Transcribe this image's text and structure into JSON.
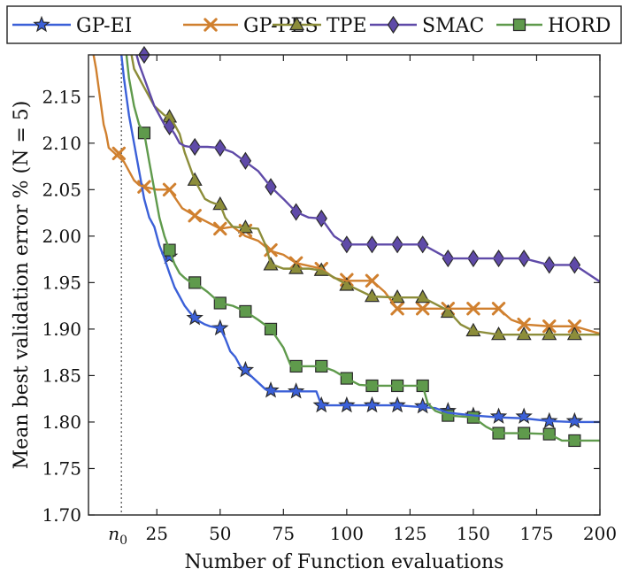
{
  "chart_data": {
    "type": "line",
    "xlabel": "Number of Function evaluations",
    "ylabel": "Mean best validation error % (N = 5)",
    "xlim": [
      -2,
      200
    ],
    "ylim": [
      1.7,
      2.195
    ],
    "xticks": [
      25,
      50,
      75,
      100,
      125,
      150,
      175,
      200
    ],
    "yticks": [
      1.7,
      1.75,
      1.8,
      1.85,
      1.9,
      1.95,
      2.0,
      2.05,
      2.1,
      2.15
    ],
    "annotation": {
      "label": "n0",
      "x": 11
    },
    "legend_position": "top",
    "grid": false,
    "series": [
      {
        "name": "GP-EI",
        "color": "#3b60d8",
        "marker": "star",
        "x": [
          11,
          12,
          14,
          16,
          18,
          20,
          22,
          24,
          26,
          28,
          30,
          32,
          34,
          36,
          38,
          40,
          42,
          44,
          46,
          48,
          50,
          52,
          54,
          56,
          58,
          60,
          62,
          64,
          66,
          68,
          70,
          75,
          80,
          85,
          88,
          90,
          100,
          120,
          135,
          140,
          150,
          160,
          170,
          180,
          190,
          200
        ],
        "y": [
          2.195,
          2.17,
          2.13,
          2.1,
          2.07,
          2.04,
          2.02,
          2.01,
          1.99,
          1.976,
          1.96,
          1.945,
          1.935,
          1.925,
          1.918,
          1.912,
          1.908,
          1.905,
          1.903,
          1.902,
          1.901,
          1.89,
          1.876,
          1.87,
          1.86,
          1.855,
          1.85,
          1.845,
          1.84,
          1.835,
          1.833,
          1.833,
          1.833,
          1.833,
          1.833,
          1.818,
          1.818,
          1.818,
          1.815,
          1.81,
          1.807,
          1.805,
          1.804,
          1.801,
          1.8,
          1.8
        ],
        "markers_x": [
          30,
          40,
          50,
          60,
          70,
          80,
          90,
          100,
          110,
          120,
          130,
          140,
          150,
          160,
          170,
          180,
          190
        ],
        "markers_y": [
          1.978,
          1.912,
          1.901,
          1.856,
          1.834,
          1.833,
          1.818,
          1.818,
          1.818,
          1.818,
          1.817,
          1.812,
          1.807,
          1.806,
          1.806,
          1.801,
          1.801
        ]
      },
      {
        "name": "GP-PES",
        "color": "#d0802f",
        "marker": "x",
        "x": [
          0,
          1,
          2,
          3,
          4,
          5,
          6,
          8,
          10,
          12,
          14,
          16,
          18,
          20,
          25,
          30,
          35,
          40,
          45,
          50,
          55,
          60,
          65,
          70,
          75,
          80,
          85,
          90,
          95,
          100,
          110,
          115,
          120,
          130,
          140,
          150,
          160,
          165,
          170,
          180,
          190,
          200
        ],
        "y": [
          2.195,
          2.18,
          2.16,
          2.14,
          2.12,
          2.11,
          2.095,
          2.09,
          2.085,
          2.08,
          2.07,
          2.06,
          2.055,
          2.053,
          2.05,
          2.05,
          2.03,
          2.022,
          2.015,
          2.008,
          2.01,
          2.0,
          1.995,
          1.984,
          1.98,
          1.971,
          1.968,
          1.965,
          1.955,
          1.952,
          1.952,
          1.94,
          1.922,
          1.922,
          1.922,
          1.922,
          1.922,
          1.91,
          1.905,
          1.903,
          1.903,
          1.895
        ],
        "markers_x": [
          10,
          20,
          30,
          40,
          50,
          60,
          70,
          80,
          90,
          100,
          110,
          120,
          130,
          140,
          150,
          160,
          170,
          180,
          190
        ],
        "markers_y": [
          2.089,
          2.053,
          2.05,
          2.022,
          2.008,
          2.006,
          1.985,
          1.971,
          1.965,
          1.953,
          1.952,
          1.922,
          1.922,
          1.922,
          1.922,
          1.922,
          1.905,
          1.903,
          1.903
        ]
      },
      {
        "name": "TPE",
        "color": "#8c8d3a",
        "marker": "triangle",
        "x": [
          15,
          16,
          18,
          20,
          22,
          24,
          26,
          28,
          30,
          32,
          34,
          36,
          38,
          40,
          42,
          44,
          46,
          48,
          50,
          52,
          55,
          60,
          65,
          68,
          70,
          75,
          80,
          85,
          90,
          100,
          110,
          120,
          130,
          140,
          145,
          150,
          160,
          170,
          180,
          190,
          200
        ],
        "y": [
          2.195,
          2.18,
          2.17,
          2.16,
          2.15,
          2.14,
          2.135,
          2.13,
          2.128,
          2.12,
          2.11,
          2.09,
          2.075,
          2.06,
          2.05,
          2.04,
          2.037,
          2.035,
          2.034,
          2.02,
          2.01,
          2.009,
          2.008,
          1.99,
          1.97,
          1.965,
          1.965,
          1.965,
          1.963,
          1.948,
          1.935,
          1.934,
          1.934,
          1.92,
          1.905,
          1.898,
          1.894,
          1.894,
          1.894,
          1.894,
          1.894
        ],
        "markers_x": [
          30,
          40,
          50,
          60,
          70,
          80,
          90,
          100,
          110,
          120,
          130,
          140,
          150,
          160,
          170,
          180,
          190
        ],
        "markers_y": [
          2.128,
          2.06,
          2.034,
          2.009,
          1.969,
          1.965,
          1.963,
          1.947,
          1.935,
          1.934,
          1.934,
          1.918,
          1.898,
          1.894,
          1.894,
          1.894,
          1.894
        ]
      },
      {
        "name": "SMAC",
        "color": "#5f4aa8",
        "marker": "diamond",
        "x": [
          17,
          18,
          20,
          22,
          24,
          26,
          28,
          30,
          32,
          34,
          36,
          38,
          40,
          45,
          50,
          55,
          60,
          65,
          70,
          75,
          80,
          85,
          90,
          95,
          100,
          110,
          120,
          130,
          140,
          150,
          160,
          170,
          180,
          190,
          200
        ],
        "y": [
          2.195,
          2.185,
          2.17,
          2.155,
          2.14,
          2.13,
          2.12,
          2.118,
          2.11,
          2.1,
          2.097,
          2.096,
          2.096,
          2.096,
          2.095,
          2.09,
          2.08,
          2.07,
          2.053,
          2.04,
          2.026,
          2.02,
          2.019,
          2.0,
          1.991,
          1.991,
          1.991,
          1.991,
          1.976,
          1.976,
          1.976,
          1.976,
          1.969,
          1.969,
          1.951
        ],
        "markers_x": [
          20,
          30,
          40,
          50,
          60,
          70,
          80,
          90,
          100,
          110,
          120,
          130,
          140,
          150,
          160,
          170,
          180,
          190
        ],
        "markers_y": [
          2.195,
          2.118,
          2.096,
          2.095,
          2.081,
          2.053,
          2.026,
          2.019,
          1.991,
          1.991,
          1.991,
          1.991,
          1.976,
          1.976,
          1.976,
          1.976,
          1.969,
          1.969
        ]
      },
      {
        "name": "HORD",
        "color": "#5f9a4c",
        "marker": "square",
        "x": [
          13,
          14,
          16,
          18,
          20,
          22,
          24,
          26,
          28,
          30,
          32,
          34,
          36,
          38,
          40,
          45,
          50,
          55,
          60,
          65,
          70,
          75,
          78,
          80,
          90,
          95,
          100,
          105,
          110,
          120,
          130,
          132,
          135,
          140,
          150,
          155,
          160,
          170,
          180,
          185,
          190,
          200
        ],
        "y": [
          2.195,
          2.17,
          2.14,
          2.12,
          2.111,
          2.08,
          2.05,
          2.02,
          2.0,
          1.985,
          1.97,
          1.96,
          1.955,
          1.951,
          1.95,
          1.94,
          1.928,
          1.925,
          1.919,
          1.91,
          1.9,
          1.88,
          1.86,
          1.86,
          1.86,
          1.855,
          1.847,
          1.84,
          1.839,
          1.839,
          1.839,
          1.82,
          1.812,
          1.807,
          1.805,
          1.795,
          1.788,
          1.788,
          1.787,
          1.78,
          1.78,
          1.78
        ],
        "markers_x": [
          20,
          30,
          40,
          50,
          60,
          70,
          80,
          90,
          100,
          110,
          120,
          130,
          140,
          150,
          160,
          170,
          180,
          190
        ],
        "markers_y": [
          2.111,
          1.985,
          1.95,
          1.928,
          1.919,
          1.9,
          1.86,
          1.86,
          1.847,
          1.839,
          1.839,
          1.839,
          1.807,
          1.805,
          1.788,
          1.788,
          1.787,
          1.78
        ]
      }
    ]
  }
}
